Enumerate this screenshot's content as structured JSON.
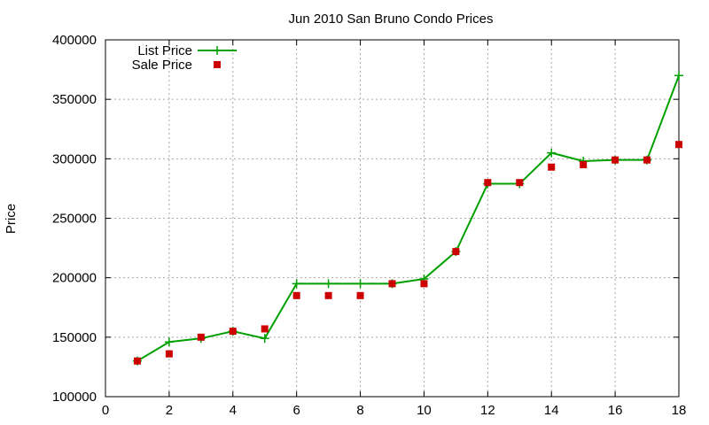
{
  "chart_data": {
    "type": "line",
    "title": "Jun 2010 San Bruno Condo Prices",
    "xlabel": "",
    "ylabel": "Price",
    "xlim": [
      0,
      18
    ],
    "ylim": [
      100000,
      400000
    ],
    "xticks": [
      0,
      2,
      4,
      6,
      8,
      10,
      12,
      14,
      16,
      18
    ],
    "yticks": [
      100000,
      150000,
      200000,
      250000,
      300000,
      350000,
      400000
    ],
    "grid": true,
    "legend_position": "top-left",
    "series": [
      {
        "name": "List Price",
        "style": "line-with-plus-markers",
        "color": "#00a000",
        "x": [
          1,
          2,
          3,
          4,
          5,
          6,
          7,
          8,
          9,
          10,
          11,
          12,
          13,
          14,
          15,
          16,
          17,
          18
        ],
        "y": [
          130000,
          146000,
          149000,
          155000,
          149000,
          195000,
          195000,
          195000,
          195000,
          199000,
          222000,
          279000,
          279000,
          305000,
          298000,
          299000,
          299000,
          370000
        ]
      },
      {
        "name": "Sale Price",
        "style": "square-markers",
        "color": "#cc0000",
        "x": [
          1,
          2,
          3,
          4,
          5,
          6,
          7,
          8,
          9,
          10,
          11,
          12,
          13,
          14,
          15,
          16,
          17,
          18
        ],
        "y": [
          130000,
          136000,
          150000,
          155000,
          157000,
          185000,
          185000,
          185000,
          195000,
          195000,
          222000,
          280000,
          280000,
          293000,
          295000,
          299000,
          299000,
          312000
        ]
      }
    ]
  }
}
